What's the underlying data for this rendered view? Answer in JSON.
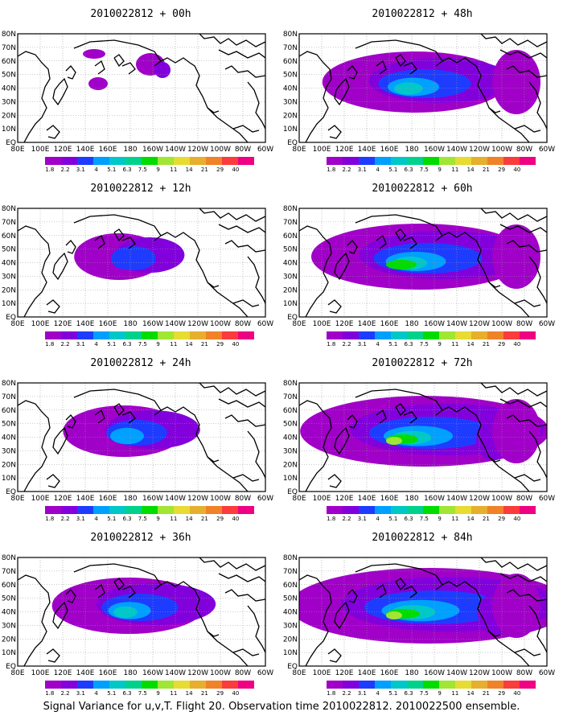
{
  "caption": "Signal Variance for u,v,T. Flight 20. Observation time 2010022812. 2010022500 ensemble.",
  "panels": [
    {
      "title": "2010022812 + 00h",
      "intensity": 0
    },
    {
      "title": "2010022812 + 12h",
      "intensity": 1
    },
    {
      "title": "2010022812 + 24h",
      "intensity": 2
    },
    {
      "title": "2010022812 + 36h",
      "intensity": 3
    },
    {
      "title": "2010022812 + 48h",
      "intensity": 4
    },
    {
      "title": "2010022812 + 60h",
      "intensity": 5
    },
    {
      "title": "2010022812 + 72h",
      "intensity": 6
    },
    {
      "title": "2010022812 + 84h",
      "intensity": 7
    }
  ],
  "x_ticks": [
    "80E",
    "100E",
    "120E",
    "140E",
    "160E",
    "180",
    "160W",
    "140W",
    "120W",
    "100W",
    "80W",
    "60W"
  ],
  "y_ticks": [
    "80N",
    "70N",
    "60N",
    "50N",
    "40N",
    "30N",
    "20N",
    "10N",
    "EQ"
  ],
  "colorbar": {
    "labels": [
      "1.8",
      "2.2",
      "3.1",
      "4",
      "5.1",
      "6.3",
      "7.5",
      "9",
      "11",
      "14",
      "21",
      "29",
      "40"
    ],
    "colors": [
      "#a000c8",
      "#8200dc",
      "#1e3cff",
      "#00a0ff",
      "#00c8c8",
      "#00d28c",
      "#00dc00",
      "#a0e632",
      "#e6dc32",
      "#e6af2d",
      "#f08228",
      "#fa3c3c",
      "#f00082"
    ]
  }
}
